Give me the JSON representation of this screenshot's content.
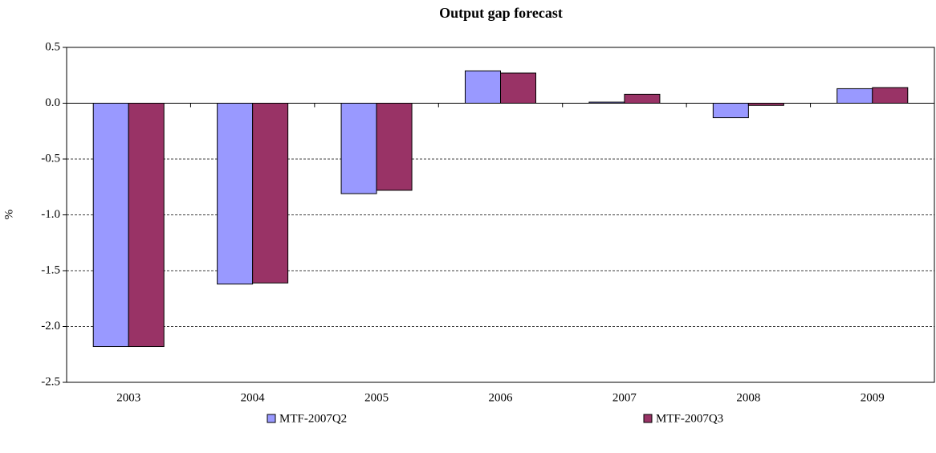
{
  "chart_data": {
    "type": "bar",
    "title": "Output gap forecast",
    "y_label": "%",
    "categories": [
      "2003",
      "2004",
      "2005",
      "2006",
      "2007",
      "2008",
      "2009"
    ],
    "series": [
      {
        "name": "MTF-2007Q2",
        "color": "#9999ff",
        "values": [
          -2.18,
          -1.62,
          -0.81,
          0.29,
          0.01,
          -0.13,
          0.13
        ]
      },
      {
        "name": "MTF-2007Q3",
        "color": "#993366",
        "values": [
          -2.18,
          -1.61,
          -0.78,
          0.27,
          0.08,
          -0.02,
          0.14
        ]
      }
    ],
    "ylim": [
      -2.5,
      0.5
    ],
    "yticks": [
      -2.5,
      {
        "value": -2,
        "label": "-2.0"
      },
      -1.5,
      {
        "value": -1,
        "label": "-1.0"
      },
      -0.5,
      {
        "value": 0,
        "label": "0.0"
      },
      0.5
    ],
    "grid": true
  }
}
